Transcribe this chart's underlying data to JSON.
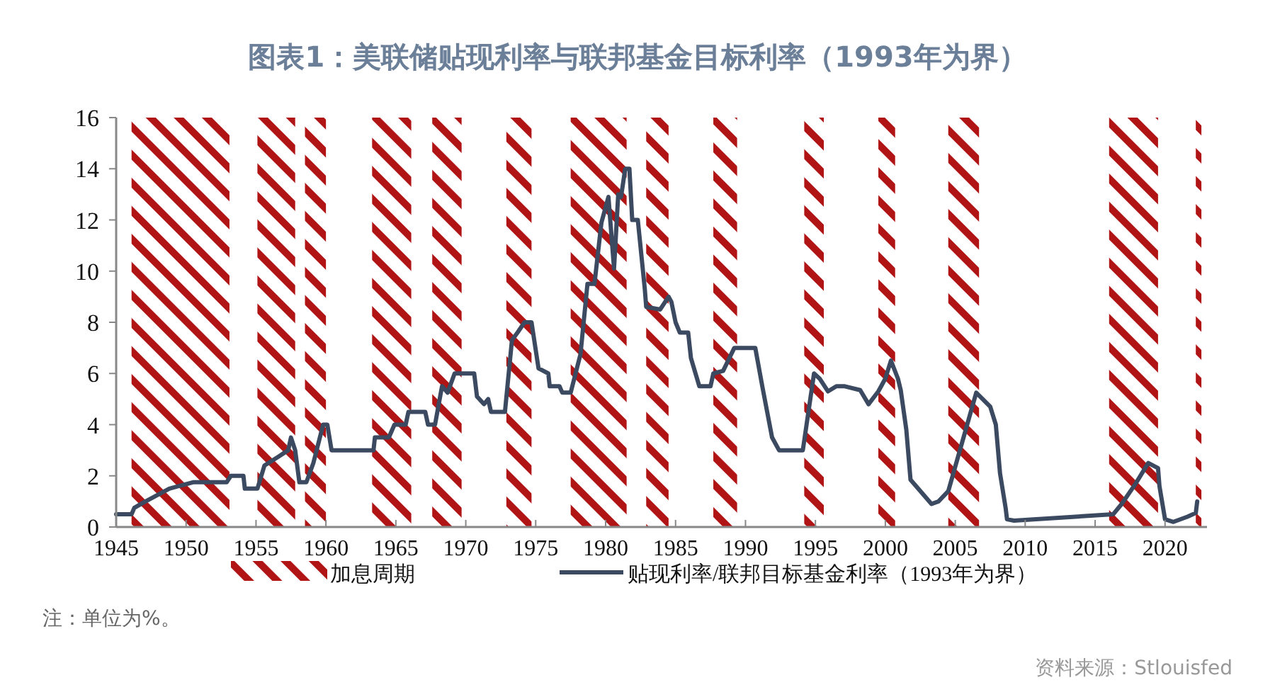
{
  "chart_data": {
    "type": "line",
    "title": "图表1：美联储贴现利率与联邦基金目标利率（1993年为界）",
    "xlim": [
      1945,
      2023
    ],
    "xticks": [
      1945,
      1950,
      1955,
      1960,
      1965,
      1970,
      1975,
      1980,
      1985,
      1990,
      1995,
      2000,
      2005,
      2010,
      2015,
      2020
    ],
    "ylim": [
      0,
      16
    ],
    "yticks": [
      0,
      2,
      4,
      6,
      8,
      10,
      12,
      14,
      16
    ],
    "grid": false,
    "legend": "bottom",
    "series": [
      {
        "name": "贴现利率/联邦目标基金利率（1993年为界）",
        "color": "#3b4a60",
        "x": [
          1945,
          1946.1,
          1946.3,
          1947.1,
          1948.8,
          1950.5,
          1952.9,
          1953.2,
          1954.1,
          1954.2,
          1955.1,
          1955.6,
          1956.6,
          1957.3,
          1957.5,
          1957.8,
          1958.1,
          1958.6,
          1959.1,
          1959.8,
          1960.1,
          1960.4,
          1963.4,
          1963.5,
          1964.5,
          1964.9,
          1965.7,
          1965.9,
          1967.1,
          1967.3,
          1967.8,
          1968.3,
          1968.7,
          1969.2,
          1970.6,
          1970.8,
          1971.3,
          1971.6,
          1971.8,
          1972.8,
          1973.3,
          1973.7,
          1974.2,
          1974.7,
          1975.2,
          1975.9,
          1976.0,
          1976.7,
          1976.9,
          1977.5,
          1978.2,
          1978.7,
          1979.2,
          1979.7,
          1980.2,
          1980.6,
          1980.9,
          1981.1,
          1981.4,
          1981.7,
          1981.9,
          1982.3,
          1982.8,
          1982.9,
          1983.9,
          1984.5,
          1984.7,
          1985.0,
          1985.3,
          1985.9,
          1986.1,
          1986.7,
          1987.5,
          1987.7,
          1988.4,
          1989.2,
          1990.7,
          1991.2,
          1991.9,
          1992.4,
          1994.1,
          1994.9,
          1995.3,
          1995.9,
          1996.5,
          1997.1,
          1998.2,
          1998.8,
          1999.5,
          2000.0,
          2000.4,
          2000.9,
          2001.1,
          2001.5,
          2001.8,
          2003.3,
          2003.8,
          2004.5,
          2006.5,
          2007.5,
          2007.9,
          2008.2,
          2008.6,
          2008.7,
          2009.2,
          2016.3,
          2016.9,
          2017.9,
          2018.8,
          2019.5,
          2019.6,
          2020.0,
          2020.6,
          2021.6,
          2022.2,
          2022.3
        ],
        "values": [
          0.5,
          0.5,
          0.75,
          1.0,
          1.5,
          1.75,
          1.75,
          2.0,
          2.0,
          1.5,
          1.5,
          2.4,
          2.75,
          3.0,
          3.5,
          3.0,
          1.75,
          1.75,
          2.5,
          4.0,
          4.0,
          3.0,
          3.0,
          3.5,
          3.5,
          4.0,
          4.0,
          4.5,
          4.5,
          4.0,
          4.0,
          5.5,
          5.25,
          6.0,
          6.0,
          5.1,
          4.8,
          5.0,
          4.5,
          4.5,
          7.3,
          7.6,
          8.0,
          8.0,
          6.2,
          6.0,
          5.5,
          5.5,
          5.25,
          5.25,
          6.75,
          9.5,
          9.5,
          11.9,
          12.9,
          10.1,
          13.0,
          12.9,
          14.0,
          14.0,
          12.0,
          12.0,
          9.3,
          8.6,
          8.5,
          9.0,
          8.8,
          8.0,
          7.6,
          7.6,
          6.6,
          5.5,
          5.5,
          6.0,
          6.1,
          7.0,
          7.0,
          5.5,
          3.5,
          3.0,
          3.0,
          6.0,
          5.8,
          5.3,
          5.5,
          5.5,
          5.35,
          4.8,
          5.3,
          5.8,
          6.5,
          5.8,
          5.35,
          3.8,
          1.85,
          0.9,
          1.0,
          1.4,
          5.25,
          4.7,
          4.0,
          2.1,
          0.75,
          0.3,
          0.25,
          0.5,
          0.9,
          1.7,
          2.5,
          2.3,
          1.6,
          0.3,
          0.2,
          0.4,
          0.55,
          1.0
        ]
      }
    ],
    "bands": [
      {
        "axis": "x",
        "from": 1946.1,
        "to": 1953.1,
        "label": "加息周期",
        "color": "#b01414"
      },
      {
        "axis": "x",
        "from": 1955.1,
        "to": 1957.8,
        "color": "#b01414"
      },
      {
        "axis": "x",
        "from": 1958.5,
        "to": 1960.0,
        "color": "#b01414"
      },
      {
        "axis": "x",
        "from": 1963.3,
        "to": 1966.1,
        "color": "#b01414"
      },
      {
        "axis": "x",
        "from": 1967.6,
        "to": 1969.7,
        "color": "#b01414"
      },
      {
        "axis": "x",
        "from": 1972.9,
        "to": 1974.7,
        "color": "#b01414"
      },
      {
        "axis": "x",
        "from": 1977.5,
        "to": 1981.5,
        "color": "#b01414"
      },
      {
        "axis": "x",
        "from": 1982.9,
        "to": 1984.5,
        "color": "#b01414"
      },
      {
        "axis": "x",
        "from": 1987.7,
        "to": 1989.4,
        "color": "#b01414"
      },
      {
        "axis": "x",
        "from": 1994.2,
        "to": 1995.6,
        "color": "#b01414"
      },
      {
        "axis": "x",
        "from": 1999.5,
        "to": 2000.7,
        "color": "#b01414"
      },
      {
        "axis": "x",
        "from": 2004.5,
        "to": 2006.7,
        "color": "#b01414"
      },
      {
        "axis": "x",
        "from": 2016.0,
        "to": 2019.5,
        "color": "#b01414"
      },
      {
        "axis": "x",
        "from": 2022.2,
        "to": 2022.6,
        "color": "#b01414"
      }
    ],
    "annotations": [
      "注：单位为%。",
      "资料来源：Stlouisfed"
    ]
  }
}
